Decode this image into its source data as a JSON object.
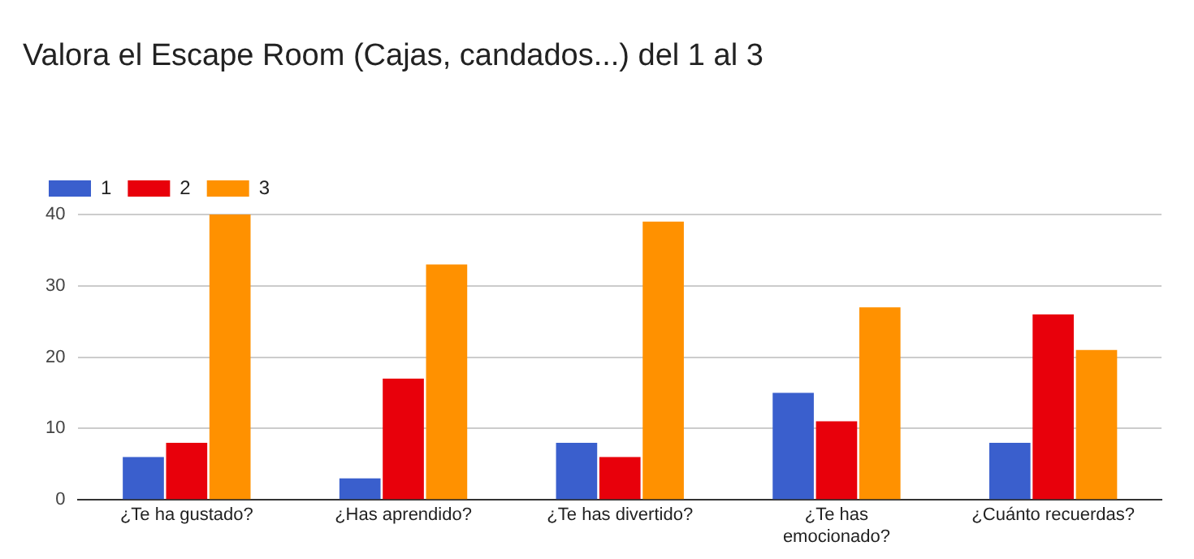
{
  "chart_data": {
    "type": "bar",
    "title": "Valora el Escape Room (Cajas, candados...) del 1 al 3",
    "categories": [
      "¿Te ha gustado?",
      "¿Has aprendido?",
      "¿Te has divertido?",
      "¿Te has\nemocionado?",
      "¿Cuánto recuerdas?"
    ],
    "series": [
      {
        "name": "1",
        "color": "#3a5fcd",
        "values": [
          6,
          3,
          8,
          15,
          8
        ]
      },
      {
        "name": "2",
        "color": "#e8000b",
        "values": [
          8,
          17,
          6,
          11,
          26
        ]
      },
      {
        "name": "3",
        "color": "#ff9100",
        "values": [
          40,
          33,
          39,
          27,
          21
        ]
      }
    ],
    "ylim": [
      0,
      40
    ],
    "yticks": [
      0,
      10,
      20,
      30,
      40
    ],
    "grid": "y",
    "legend": "top left"
  }
}
